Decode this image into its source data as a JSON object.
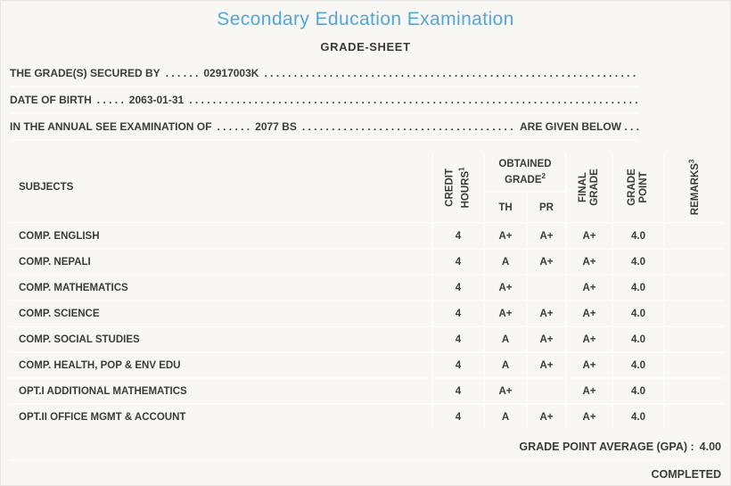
{
  "page": {
    "title": "Secondary Education Examination",
    "subtitle": "GRADE-SHEET"
  },
  "info_lines": [
    {
      "prefix": "THE GRADE(S) SECURED BY",
      "dots_a": ". . . . . .",
      "value": "02917003K",
      "dots_b": ". . . . . . . . . . . . . . . . . . . . . . . . . . . . . . . . . . . . . . . . . . . . . . . . . . . . . . . . . . . . . . . . . . . . . . . . . . . . . . . .",
      "suffix": ""
    },
    {
      "prefix": "DATE OF BIRTH",
      "dots_a": ". . . . .",
      "value": "2063-01-31",
      "dots_b": ". . . . . . . . . . . . . . . . . . . . . . . . . . . . . . . . . . . . . . . . . . . . . . . . . . . . . . . . . . . . . . . . . . . . . . . . . . . . . . . .",
      "suffix": ""
    },
    {
      "prefix": "IN THE ANNUAL SEE EXAMINATION OF",
      "dots_a": ". . . . . .",
      "value": "2077 BS",
      "dots_b": ". . . . . . . . . . . . . . . . . . . . . . . . . . . . . . . . . . . . . . . . . . . . . . . . . . . . . . . . . . . . . . . . . . . . . . . . . . . . . . . .",
      "suffix": "ARE GIVEN BELOW . . ."
    }
  ],
  "table": {
    "headers": {
      "subjects": "SUBJECTS",
      "credit_hours": {
        "line1": "CREDIT",
        "line2": "HOURS",
        "sup": "1"
      },
      "obtained_grade": {
        "line1": "OBTAINED",
        "line2": "GRADE",
        "sup": "2"
      },
      "th": "TH",
      "pr": "PR",
      "final_grade": {
        "line1": "FINAL",
        "line2": "GRADE"
      },
      "grade_point": {
        "line1": "GRADE",
        "line2": "POINT"
      },
      "remarks": {
        "line1": "REMARKS",
        "sup": "3"
      }
    },
    "rows": [
      {
        "subject": "COMP. ENGLISH",
        "credit": "4",
        "th": "A+",
        "pr": "A+",
        "final": "A+",
        "gp": "4.0",
        "remarks": ""
      },
      {
        "subject": "COMP. NEPALI",
        "credit": "4",
        "th": "A",
        "pr": "A+",
        "final": "A+",
        "gp": "4.0",
        "remarks": ""
      },
      {
        "subject": "COMP. MATHEMATICS",
        "credit": "4",
        "th": "A+",
        "pr": "",
        "final": "A+",
        "gp": "4.0",
        "remarks": ""
      },
      {
        "subject": "COMP. SCIENCE",
        "credit": "4",
        "th": "A+",
        "pr": "A+",
        "final": "A+",
        "gp": "4.0",
        "remarks": ""
      },
      {
        "subject": "COMP. SOCIAL STUDIES",
        "credit": "4",
        "th": "A",
        "pr": "A+",
        "final": "A+",
        "gp": "4.0",
        "remarks": ""
      },
      {
        "subject": "COMP. HEALTH, POP & ENV EDU",
        "credit": "4",
        "th": "A",
        "pr": "A+",
        "final": "A+",
        "gp": "4.0",
        "remarks": ""
      },
      {
        "subject": "OPT.I ADDITIONAL MATHEMATICS",
        "credit": "4",
        "th": "A+",
        "pr": "",
        "final": "A+",
        "gp": "4.0",
        "remarks": ""
      },
      {
        "subject": "OPT.II OFFICE MGMT & ACCOUNT",
        "credit": "4",
        "th": "A",
        "pr": "A+",
        "final": "A+",
        "gp": "4.0",
        "remarks": ""
      }
    ]
  },
  "footer": {
    "gpa_label": "GRADE POINT AVERAGE (GPA) :",
    "gpa_value": "4.00",
    "status": "COMPLETED"
  },
  "colors": {
    "accent": "#4FA8DC",
    "text": "#3D3B39",
    "background": "#F8F7F4",
    "gridline": "#FCFCFB"
  }
}
